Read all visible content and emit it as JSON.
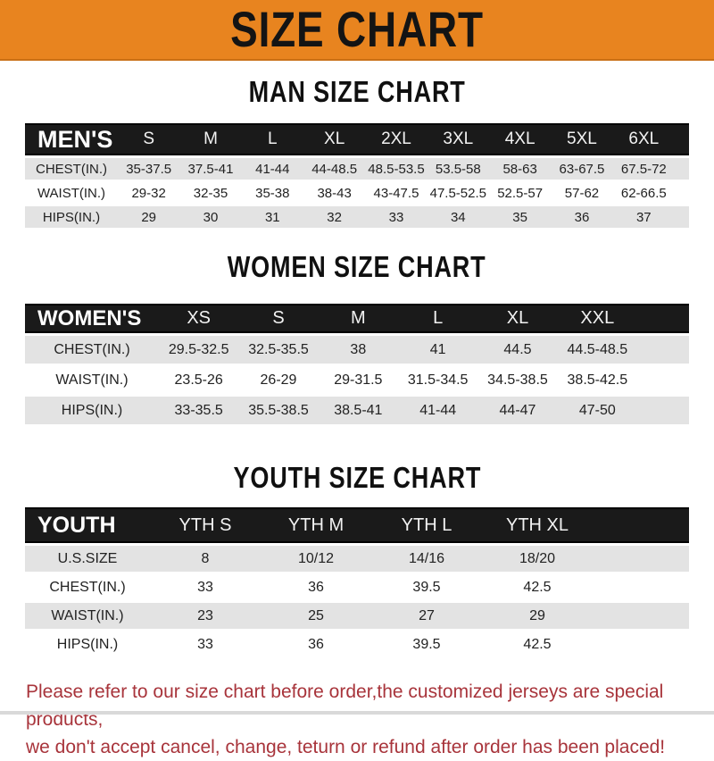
{
  "banner": {
    "title": "SIZE CHART"
  },
  "colors": {
    "banner_bg": "#E8841F",
    "header_bar_bg": "#1A1A1A",
    "row_alt_bg": "#E3E3E3",
    "disclaimer_red": "#A8343B"
  },
  "sections": [
    {
      "heading": "MAN SIZE CHART",
      "corner_label": "MEN'S",
      "columns": [
        "S",
        "M",
        "L",
        "XL",
        "2XL",
        "3XL",
        "4XL",
        "5XL",
        "6XL"
      ],
      "rows": [
        {
          "label": "CHEST(IN.)",
          "values": [
            "35-37.5",
            "37.5-41",
            "41-44",
            "44-48.5",
            "48.5-53.5",
            "53.5-58",
            "58-63",
            "63-67.5",
            "67.5-72"
          ]
        },
        {
          "label": "WAIST(IN.)",
          "values": [
            "29-32",
            "32-35",
            "35-38",
            "38-43",
            "43-47.5",
            "47.5-52.5",
            "52.5-57",
            "57-62",
            "62-66.5"
          ]
        },
        {
          "label": "HIPS(IN.)",
          "values": [
            "29",
            "30",
            "31",
            "32",
            "33",
            "34",
            "35",
            "36",
            "37"
          ]
        }
      ]
    },
    {
      "heading": "WOMEN SIZE CHART",
      "corner_label": "WOMEN'S",
      "columns": [
        "XS",
        "S",
        "M",
        "L",
        "XL",
        "XXL"
      ],
      "rows": [
        {
          "label": "CHEST(IN.)",
          "values": [
            "29.5-32.5",
            "32.5-35.5",
            "38",
            "41",
            "44.5",
            "44.5-48.5"
          ]
        },
        {
          "label": "WAIST(IN.)",
          "values": [
            "23.5-26",
            "26-29",
            "29-31.5",
            "31.5-34.5",
            "34.5-38.5",
            "38.5-42.5"
          ]
        },
        {
          "label": "HIPS(IN.)",
          "values": [
            "33-35.5",
            "35.5-38.5",
            "38.5-41",
            "41-44",
            "44-47",
            "47-50"
          ]
        }
      ]
    },
    {
      "heading": "YOUTH SIZE CHART",
      "corner_label": "YOUTH",
      "columns": [
        "YTH S",
        "YTH M",
        "YTH L",
        "YTH XL"
      ],
      "rows": [
        {
          "label": "U.S.SIZE",
          "values": [
            "8",
            "10/12",
            "14/16",
            "18/20"
          ]
        },
        {
          "label": "CHEST(IN.)",
          "values": [
            "33",
            "36",
            "39.5",
            "42.5"
          ]
        },
        {
          "label": "WAIST(IN.)",
          "values": [
            "23",
            "25",
            "27",
            "29"
          ]
        },
        {
          "label": "HIPS(IN.)",
          "values": [
            "33",
            "36",
            "39.5",
            "42.5"
          ]
        }
      ]
    }
  ],
  "disclaimer": {
    "line1": "Please refer to our size chart before order,the customized jerseys are special products,",
    "line2": "we don't accept cancel, change, teturn or refund after order has been placed!"
  }
}
